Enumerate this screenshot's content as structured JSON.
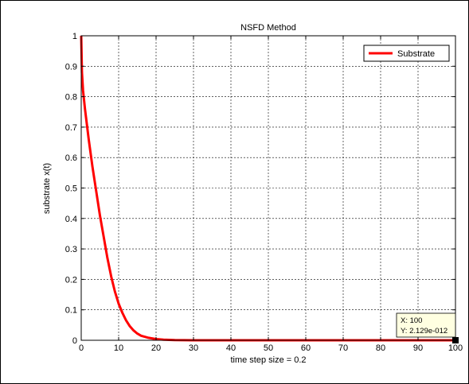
{
  "chart_data": {
    "type": "line",
    "title": "NSFD Method",
    "xlabel": "time step size = 0.2",
    "ylabel": "substrate x(t)",
    "xlim": [
      0,
      100
    ],
    "ylim": [
      0,
      1
    ],
    "xticks": [
      0,
      10,
      20,
      30,
      40,
      50,
      60,
      70,
      80,
      90,
      100
    ],
    "yticks": [
      0,
      0.1,
      0.2,
      0.3,
      0.4,
      0.5,
      0.6,
      0.7,
      0.8,
      0.9,
      1
    ],
    "xtick_labels": [
      "0",
      "10",
      "20",
      "30",
      "40",
      "50",
      "60",
      "70",
      "80",
      "90",
      "100"
    ],
    "ytick_labels": [
      "0",
      "0.1",
      "0.2",
      "0.3",
      "0.4",
      "0.5",
      "0.6",
      "0.7",
      "0.8",
      "0.9",
      "1"
    ],
    "grid": true,
    "legend_position": "top-right",
    "series": [
      {
        "name": "Substrate",
        "color": "#ff0000",
        "x": [
          0,
          0.2,
          0.5,
          1,
          2,
          3,
          4,
          5,
          6,
          7,
          8,
          9,
          10,
          11,
          12,
          13,
          14,
          15,
          16,
          18,
          20,
          22,
          25,
          30,
          40,
          50,
          60,
          70,
          80,
          90,
          100
        ],
        "y": [
          1.0,
          0.88,
          0.82,
          0.76,
          0.66,
          0.57,
          0.49,
          0.41,
          0.34,
          0.27,
          0.21,
          0.16,
          0.12,
          0.09,
          0.065,
          0.046,
          0.032,
          0.022,
          0.015,
          0.008,
          0.004,
          0.002,
          0.0008,
          0.0001,
          0,
          0,
          0,
          0,
          0,
          0,
          0
        ]
      }
    ],
    "datatip": {
      "x": 100,
      "y": 2.129e-12,
      "x_label": "X: 100",
      "y_label": "Y: 2.129e-012"
    }
  }
}
